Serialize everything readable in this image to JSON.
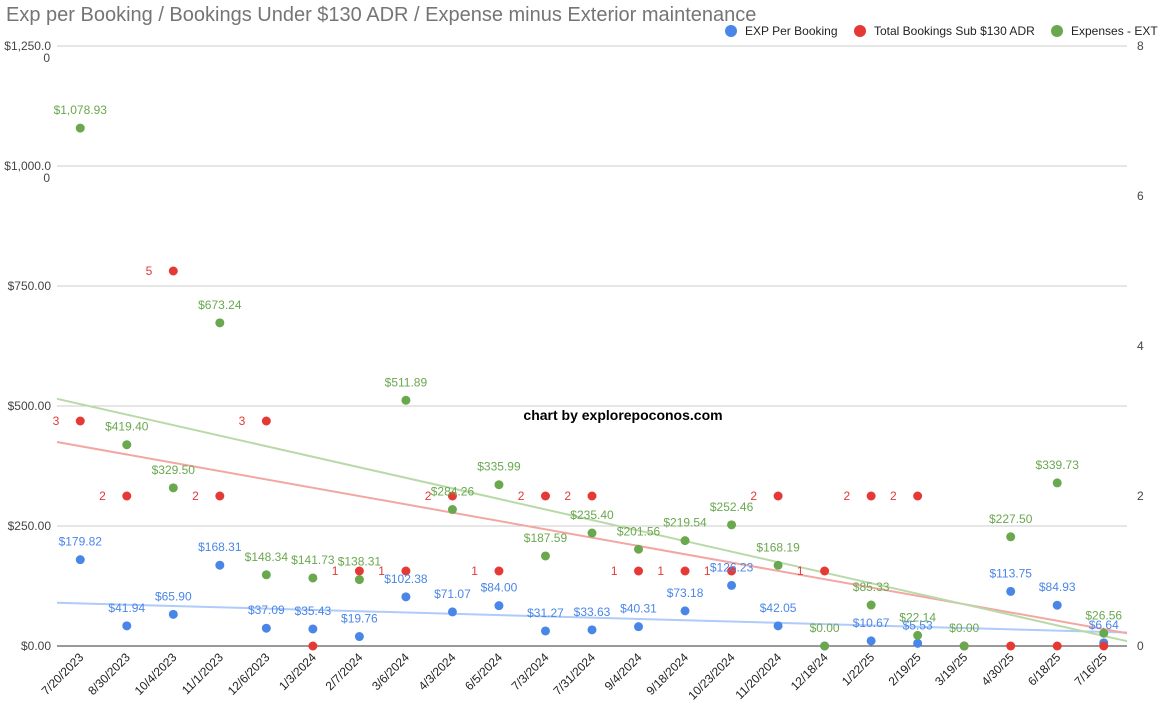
{
  "chart_data": {
    "type": "scatter",
    "title": "Exp per Booking / Bookings Under $130 ADR / Expense minus Exterior maintenance",
    "credit": "chart by explorepoconos.com",
    "legend_position": "top-right",
    "grid": true,
    "categories": [
      "7/20/2023",
      "8/30/2023",
      "10/4/2023",
      "11/1/2023",
      "12/6/2023",
      "1/3/2024",
      "2/7/2024",
      "3/6/2024",
      "4/3/2024",
      "6/5/2024",
      "7/3/2024",
      "7/31/2024",
      "9/4/2024",
      "9/18/2024",
      "10/23/2024",
      "11/20/2024",
      "12/18/24",
      "1/22/25",
      "2/19/25",
      "3/19/25",
      "4/30/25",
      "6/18/25",
      "7/16/25"
    ],
    "left_axis": {
      "ylim": [
        0,
        1250
      ],
      "ticks": [
        0,
        250,
        500,
        750,
        1000,
        1250
      ],
      "tick_labels": [
        "$0.00",
        "$250.00",
        "$500.00",
        "$750.00",
        "$1,000.0",
        "$1,250.0"
      ],
      "extra_tick_labels": [
        "0",
        "0"
      ]
    },
    "right_axis": {
      "ylim": [
        0,
        8
      ],
      "ticks": [
        0,
        2,
        4,
        6,
        8
      ],
      "tick_labels": [
        "0",
        "2",
        "4",
        "6",
        "8"
      ]
    },
    "series": [
      {
        "name": "EXP Per Booking",
        "color": "#4a86e8",
        "axis": "left",
        "values": [
          179.82,
          41.94,
          65.9,
          168.31,
          37.09,
          35.43,
          19.76,
          102.38,
          71.07,
          84.0,
          31.27,
          33.63,
          40.31,
          73.18,
          126.23,
          42.05,
          0,
          10.67,
          5.53,
          0,
          113.75,
          84.93,
          6.64
        ],
        "labels": [
          "$179.82",
          "$41.94",
          "$65.90",
          "$168.31",
          "$37.09",
          "$35.43",
          "$19.76",
          "$102.38",
          "$71.07",
          "$84.00",
          "$31.27",
          "$33.63",
          "$40.31",
          "$73.18",
          "$126.23",
          "$42.05",
          "",
          "$10.67",
          "$5.53",
          "",
          "$113.75",
          "$84.93",
          "$6.64"
        ],
        "trendline": [
          90,
          28
        ]
      },
      {
        "name": "Total Bookings Sub $130 ADR",
        "color": "#e53935",
        "axis": "right",
        "values": [
          3,
          2,
          5,
          2,
          3,
          0,
          1,
          1,
          2,
          1,
          2,
          2,
          1,
          1,
          1,
          2,
          1,
          2,
          2,
          0,
          0,
          0,
          0
        ],
        "labels": [
          "3",
          "2",
          "5",
          "2",
          "3",
          "",
          "1",
          "1",
          "2",
          "1",
          "2",
          "2",
          "1",
          "1",
          "1",
          "2",
          "1",
          "2",
          "2",
          "",
          "",
          "",
          ""
        ],
        "trendline": [
          2.72,
          0.17
        ]
      },
      {
        "name": "Expenses - EXT",
        "color": "#6aa84f",
        "axis": "left",
        "values": [
          1078.93,
          419.4,
          329.5,
          673.24,
          148.34,
          141.73,
          138.31,
          511.89,
          284.26,
          335.99,
          187.59,
          235.4,
          201.56,
          219.54,
          252.46,
          168.19,
          0,
          85.33,
          22.14,
          0,
          227.5,
          339.73,
          26.56
        ],
        "labels": [
          "$1,078.93",
          "$419.40",
          "$329.50",
          "$673.24",
          "$148.34",
          "$141.73",
          "$138.31",
          "$511.89",
          "$284.26",
          "$335.99",
          "$187.59",
          "$235.40",
          "$201.56",
          "$219.54",
          "$252.46",
          "$168.19",
          "$0.00",
          "$85.33",
          "$22.14",
          "$0.00",
          "$227.50",
          "$339.73",
          "$26.56"
        ],
        "trendline": [
          515,
          10
        ]
      }
    ]
  }
}
